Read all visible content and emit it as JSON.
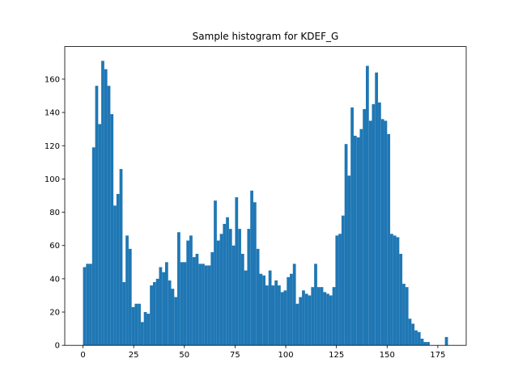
{
  "chart_data": {
    "type": "histogram",
    "title": "Sample histogram for KDEF_G",
    "color": "#1f77b4",
    "bins": [
      0,
      1.5,
      3,
      4.5,
      6,
      7.5,
      9,
      10.5,
      12,
      13.5,
      15,
      16.5,
      18,
      19.5,
      21,
      22.5,
      24,
      25.5,
      27,
      28.5,
      30,
      31.5,
      33,
      34.5,
      36,
      37.5,
      39,
      40.5,
      42,
      43.5,
      45,
      46.5,
      48,
      49.5,
      51,
      52.5,
      54,
      55.5,
      57,
      58.5,
      60,
      61.5,
      63,
      64.5,
      66,
      67.5,
      69,
      70.5,
      72,
      73.5,
      75,
      76.5,
      78,
      79.5,
      81,
      82.5,
      84,
      85.5,
      87,
      88.5,
      90,
      91.5,
      93,
      94.5,
      96,
      97.5,
      99,
      100.5,
      102,
      103.5,
      105,
      106.5,
      108,
      109.5,
      111,
      112.5,
      114,
      115.5,
      117,
      118.5,
      120,
      121.5,
      123,
      124.5,
      126,
      127.5,
      129,
      130.5,
      132,
      133.5,
      135,
      136.5,
      138,
      139.5,
      141,
      142.5,
      144,
      145.5,
      147,
      148.5,
      150,
      151.5,
      153,
      154.5,
      156,
      157.5,
      159,
      160.5,
      162,
      163.5,
      165,
      166.5,
      168,
      169.5,
      171,
      172.5,
      174,
      175.5,
      177,
      178.5,
      180
    ],
    "values": [
      47,
      49,
      49,
      119,
      156,
      133,
      171,
      166,
      156,
      139,
      84,
      91,
      106,
      38,
      66,
      58,
      23,
      25,
      25,
      14,
      20,
      19,
      36,
      38,
      40,
      47,
      44,
      50,
      39,
      34,
      29,
      68,
      50,
      50,
      63,
      66,
      53,
      55,
      49,
      49,
      48,
      48,
      56,
      87,
      63,
      67,
      73,
      77,
      70,
      60,
      89,
      70,
      55,
      45,
      70,
      93,
      86,
      58,
      43,
      42,
      36,
      45,
      36,
      39,
      36,
      32,
      33,
      41,
      43,
      49,
      25,
      29,
      33,
      31,
      30,
      35,
      49,
      35,
      35,
      32,
      31,
      30,
      35,
      66,
      67,
      78,
      121,
      102,
      143,
      126,
      125,
      130,
      142,
      168,
      135,
      145,
      164,
      146,
      136,
      135,
      127,
      67,
      66,
      65,
      55,
      37,
      35,
      16,
      13,
      9,
      8,
      4,
      2,
      2,
      0,
      0,
      0,
      0,
      0,
      5
    ],
    "xlim": [
      -9,
      189
    ],
    "ylim": [
      0,
      179.6
    ],
    "xticks": [
      0,
      25,
      50,
      75,
      100,
      125,
      150,
      175
    ],
    "yticks": [
      0,
      20,
      40,
      60,
      80,
      100,
      120,
      140,
      160
    ]
  }
}
